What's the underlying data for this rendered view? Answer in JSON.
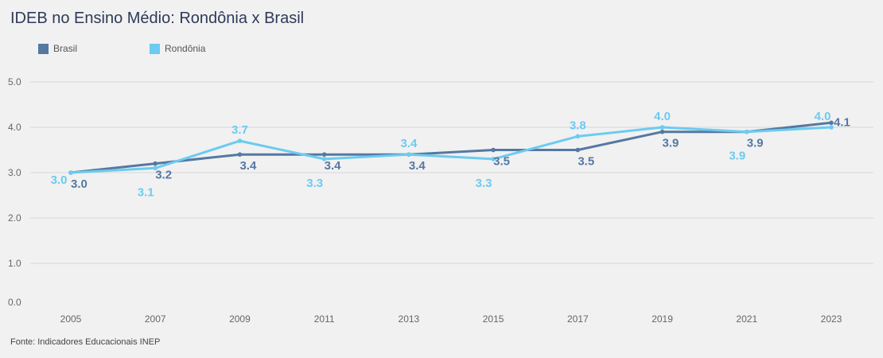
{
  "title": "IDEB no Ensino Médio: Rondônia x Brasil",
  "source": "Fonte: Indicadores Educacionais INEP",
  "colors": {
    "brasil": "#5578a3",
    "rondonia": "#6ccbf0",
    "grid": "#d6d6d6",
    "axis_text": "#666666"
  },
  "chart_data": {
    "type": "line",
    "title": "IDEB no Ensino Médio: Rondônia x Brasil",
    "x": [
      "2005",
      "2007",
      "2009",
      "2011",
      "2013",
      "2015",
      "2017",
      "2019",
      "2021",
      "2023"
    ],
    "ylim": [
      0,
      5
    ],
    "yticks": [
      "0.0",
      "1.0",
      "2.0",
      "3.0",
      "4.0",
      "5.0"
    ],
    "grid": true,
    "legend": "top-left",
    "series": [
      {
        "name": "Brasil",
        "key": "brasil",
        "values": [
          3.0,
          3.2,
          3.4,
          3.4,
          3.4,
          3.5,
          3.5,
          3.9,
          3.9,
          4.1
        ],
        "labels": [
          "3.0",
          "3.2",
          "3.4",
          "3.4",
          "3.4",
          "3.5",
          "3.5",
          "3.9",
          "3.9",
          "4.1"
        ]
      },
      {
        "name": "Rondônia",
        "key": "rondonia",
        "values": [
          3.0,
          3.1,
          3.7,
          3.3,
          3.4,
          3.3,
          3.8,
          4.0,
          3.9,
          4.0
        ],
        "labels": [
          "3.0",
          "3.1",
          "3.7",
          "3.3",
          "3.4",
          "3.3",
          "3.8",
          "4.0",
          "3.9",
          "4.0"
        ]
      }
    ]
  }
}
